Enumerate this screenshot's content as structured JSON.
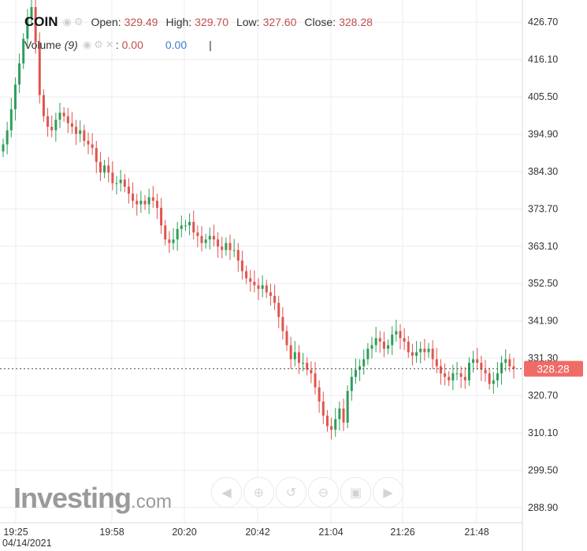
{
  "legend": {
    "symbol": "COIN",
    "open_label": "Open:",
    "open": "329.49",
    "high_label": "High:",
    "high": "329.70",
    "low_label": "Low:",
    "low": "327.60",
    "close_label": "Close:",
    "close": "328.28",
    "volume_label": "Volume",
    "volume_period": "(9)",
    "volume_value": "0.00",
    "volume_ma": "0.00"
  },
  "brand": {
    "name": "Investing",
    "suffix": ".com"
  },
  "colors": {
    "up": "#2e9e5a",
    "down": "#e0554f",
    "ref": "#e0554f",
    "grid": "#ececec",
    "price_tag": "#ef6b66"
  },
  "icons": [
    "eye-icon",
    "gear-icon",
    "close-icon",
    "scroll-left-icon",
    "zoom-in-icon",
    "zoom-reset-icon",
    "zoom-out-icon",
    "scroll-right-icon"
  ],
  "chart_data": {
    "type": "candlestick",
    "symbol": "COIN",
    "date_label": "04/14/2021",
    "x_ticks": [
      "19:25",
      "19:58",
      "20:20",
      "20:42",
      "21:04",
      "21:26",
      "21:48"
    ],
    "y_ticks": [
      "426.70",
      "416.10",
      "405.50",
      "394.90",
      "384.30",
      "373.70",
      "363.10",
      "352.50",
      "341.90",
      "331.30",
      "320.70",
      "310.10",
      "299.50",
      "288.90"
    ],
    "ylim": [
      284.6,
      433.0
    ],
    "last_price": "328.28",
    "last_price_value": 328.28,
    "grid": true,
    "close_series": [
      392,
      396,
      402,
      409,
      415,
      422,
      428,
      431,
      421,
      406,
      400,
      397,
      396,
      399,
      401,
      400,
      398,
      397,
      395,
      396,
      393,
      392,
      391,
      387,
      384,
      386,
      384,
      381,
      381,
      382,
      380,
      378,
      376,
      375,
      376,
      375,
      377,
      376,
      374,
      369,
      365,
      364,
      365,
      368,
      369,
      369,
      370,
      367,
      366,
      364,
      365,
      366,
      365,
      363,
      362,
      364,
      362,
      362,
      359,
      356,
      354,
      353,
      352,
      351,
      352,
      350,
      349,
      347,
      343,
      339,
      335,
      331,
      333,
      330,
      330,
      328,
      327,
      323,
      319,
      315,
      312,
      311,
      314,
      317,
      313,
      322,
      326,
      328,
      329,
      331,
      334,
      335,
      337,
      336,
      334,
      335,
      338,
      339,
      337,
      336,
      333,
      332,
      333,
      334,
      333,
      334,
      331,
      329,
      327,
      326,
      325,
      327,
      327,
      326,
      325,
      330,
      331,
      330,
      328,
      327,
      324,
      325,
      327,
      330,
      331,
      329,
      328.28
    ]
  }
}
